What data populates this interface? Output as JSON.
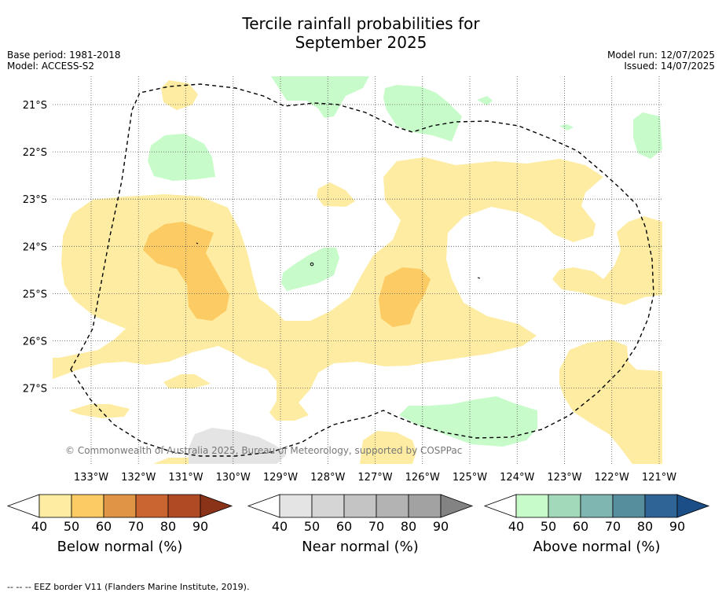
{
  "title_line1": "Tercile rainfall probabilities for",
  "title_line2": "September 2025",
  "base_period": "Base period: 1981-2018",
  "model": "Model: ACCESS-S2",
  "model_run": "Model run: 12/07/2025",
  "issued": "Issued: 14/07/2025",
  "copyright": "© Commonwealth of Australia 2025, Bureau of Meteorology, supported by COSPPac",
  "lon_labels": [
    "133°W",
    "132°W",
    "131°W",
    "130°W",
    "129°W",
    "128°W",
    "127°W",
    "126°W",
    "125°W",
    "124°W",
    "123°W",
    "122°W",
    "121°W"
  ],
  "lat_labels": [
    "21°S",
    "22°S",
    "23°S",
    "24°S",
    "25°S",
    "26°S",
    "27°S"
  ],
  "colorbars": [
    {
      "label": "Below normal (%)",
      "ticks": [
        "40",
        "50",
        "60",
        "70",
        "80",
        "90"
      ],
      "colors": [
        "#fdeca1",
        "#fdcb63",
        "#e09446",
        "#ca6531",
        "#b04a25",
        "#8b3318"
      ]
    },
    {
      "label": "Near normal (%)",
      "ticks": [
        "40",
        "50",
        "60",
        "70",
        "80",
        "90"
      ],
      "colors": [
        "#e4e4e4",
        "#d5d5d5",
        "#c4c4c4",
        "#b3b3b3",
        "#a2a2a2",
        "#838383"
      ]
    },
    {
      "label": "Above normal (%)",
      "ticks": [
        "40",
        "50",
        "60",
        "70",
        "80",
        "90"
      ],
      "colors": [
        "#c8fbca",
        "#a3d9bb",
        "#7fb6b1",
        "#578e9e",
        "#2f6596",
        "#1b4d86"
      ]
    }
  ],
  "footnote": "--  --  -- EEZ border V11 (Flanders Marine Institute, 2019)."
}
